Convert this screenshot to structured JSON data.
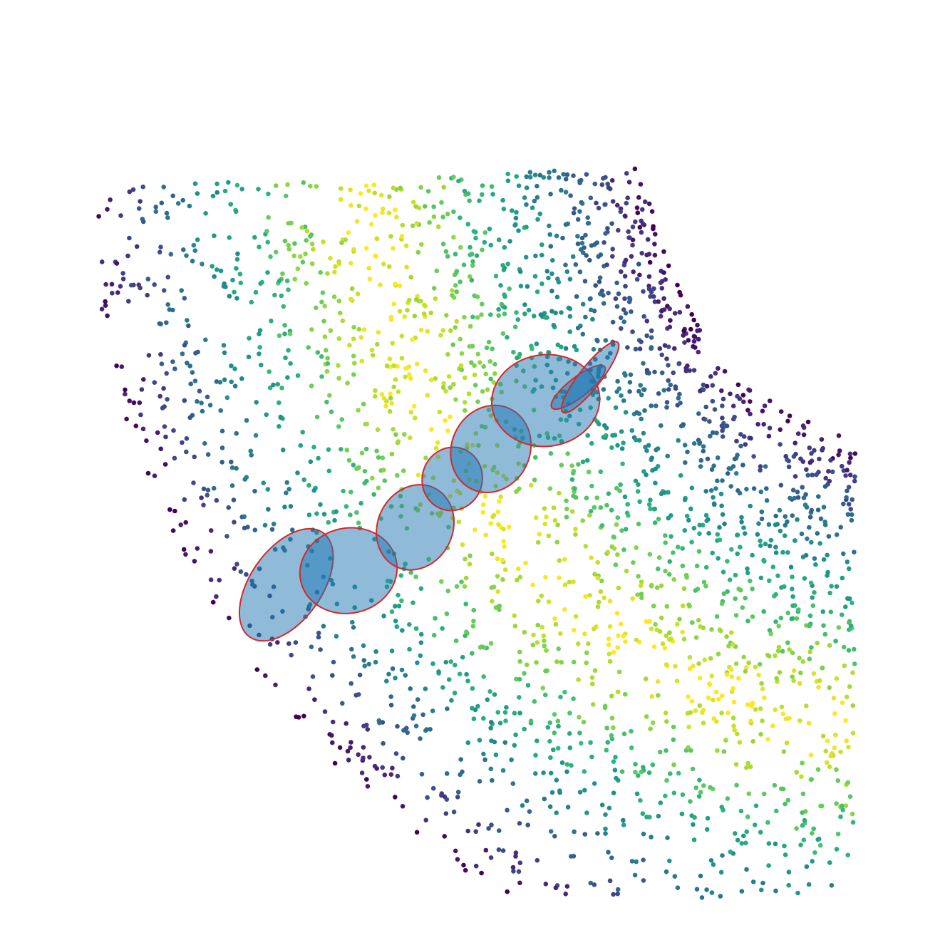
{
  "chart_data": {
    "type": "scatter",
    "title": "",
    "xlabel": "",
    "ylabel": "",
    "axes_visible": false,
    "grid": false,
    "legend": "none",
    "colormap": "viridis",
    "background": "#ffffff",
    "xlim": [
      0,
      100
    ],
    "ylim": [
      0,
      100
    ],
    "point_count": 2600,
    "ellipse_fill": "#1f77b4",
    "ellipse_fill_opacity": 0.5,
    "ellipse_edge": "#d62728",
    "ellipses": [
      {
        "cx": 24.2,
        "cy": 36.7,
        "rx": 8.6,
        "ry": 4.3,
        "angle": -55
      },
      {
        "cx": 32.6,
        "cy": 38.4,
        "rx": 6.6,
        "ry": 5.1,
        "angle": -13
      },
      {
        "cx": 41.6,
        "cy": 43.6,
        "rx": 5.9,
        "ry": 4.5,
        "angle": -64
      },
      {
        "cx": 46.6,
        "cy": 49.4,
        "rx": 4.3,
        "ry": 3.6,
        "angle": -72
      },
      {
        "cx": 51.8,
        "cy": 53.0,
        "rx": 6.0,
        "ry": 4.7,
        "angle": -65
      },
      {
        "cx": 59.2,
        "cy": 58.8,
        "rx": 7.3,
        "ry": 5.5,
        "angle": -6
      },
      {
        "cx": 63.6,
        "cy": 60.4,
        "rx": 4.5,
        "ry": 1.2,
        "angle": -38
      },
      {
        "cx": 65.2,
        "cy": 61.6,
        "rx": 6.0,
        "ry": 1.3,
        "angle": -52
      }
    ]
  }
}
